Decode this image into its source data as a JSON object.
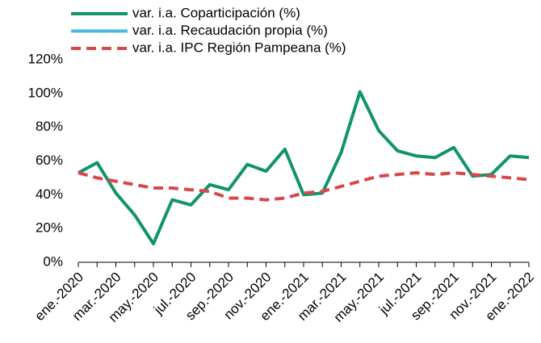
{
  "chart_data": {
    "type": "line",
    "categories": [
      "ene.-2020",
      null,
      "mar.-2020",
      null,
      "may.-2020",
      null,
      "jul.-2020",
      null,
      "sep.-2020",
      null,
      "nov.-2020",
      null,
      "ene.-2021",
      null,
      "mar.-2021",
      null,
      "may.-2021",
      null,
      "jul.-2021",
      null,
      "sep.-2021",
      null,
      "nov.-2021",
      null,
      "ene.-2022"
    ],
    "series": [
      {
        "name": "var. i.a. Coparticipación (%)",
        "color": "#12946a",
        "dashed": false,
        "values": [
          53,
          59,
          41,
          28,
          11,
          37,
          34,
          46,
          43,
          58,
          54,
          67,
          40,
          41,
          65,
          101,
          78,
          66,
          63,
          62,
          68,
          51,
          52,
          63,
          62
        ]
      },
      {
        "name": "var. i.a. Recaudación propia (%)",
        "color": "#4ab8e6",
        "dashed": false,
        "values": [
          null,
          null,
          null,
          null,
          null,
          null,
          null,
          null,
          null,
          null,
          null,
          null,
          null,
          null,
          null,
          null,
          null,
          null,
          null,
          null,
          null,
          null,
          null,
          null,
          null
        ]
      },
      {
        "name": "var. i.a. IPC Región Pampeana (%)",
        "color": "#d9474d",
        "dashed": true,
        "values": [
          53,
          50,
          48,
          46,
          44,
          44,
          43,
          42,
          38,
          38,
          37,
          38,
          41,
          42,
          45,
          48,
          51,
          52,
          53,
          52,
          53,
          52,
          51,
          50,
          49
        ]
      }
    ],
    "ylim": [
      0,
      120
    ],
    "yticks": [
      {
        "value": 0,
        "label": "0%"
      },
      {
        "value": 20,
        "label": "20%"
      },
      {
        "value": 40,
        "label": "40%"
      },
      {
        "value": 60,
        "label": "60%"
      },
      {
        "value": 80,
        "label": "80%"
      },
      {
        "value": 100,
        "label": "100%"
      },
      {
        "value": 120,
        "label": "120%"
      }
    ],
    "grid": false
  }
}
